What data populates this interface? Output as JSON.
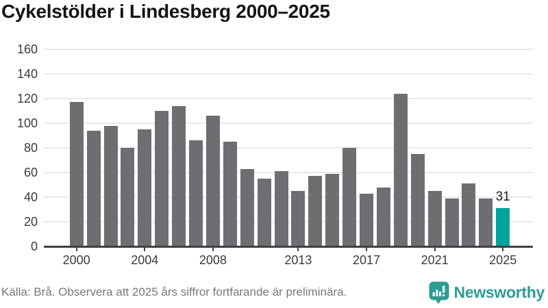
{
  "title": "Cykelstölder i Lindesberg 2000–2025",
  "chart_data": {
    "type": "bar",
    "title": "Cykelstölder i Lindesberg 2000–2025",
    "categories": [
      2000,
      2001,
      2002,
      2003,
      2004,
      2005,
      2006,
      2007,
      2008,
      2009,
      2010,
      2011,
      2012,
      2013,
      2014,
      2015,
      2016,
      2017,
      2018,
      2019,
      2020,
      2021,
      2022,
      2023,
      2024,
      2025
    ],
    "values": [
      117,
      94,
      98,
      80,
      95,
      110,
      114,
      86,
      106,
      85,
      63,
      55,
      61,
      45,
      57,
      59,
      80,
      43,
      48,
      124,
      75,
      45,
      39,
      51,
      39,
      31
    ],
    "ylim": [
      0,
      160
    ],
    "yticks": [
      0,
      20,
      40,
      60,
      80,
      100,
      120,
      140,
      160
    ],
    "xtick_labels": [
      "2000",
      "2004",
      "2008",
      "2013",
      "2017",
      "2021",
      "2025"
    ],
    "grid": "horizontal",
    "legend": "none",
    "bar_color": "#6e6e72",
    "highlight_color": "#00a39c",
    "highlight_index": 25,
    "highlight_label": "31"
  },
  "footer": {
    "source_text": "Källa: Brå. Observera att 2025 års siffror fortfarande är preliminära."
  },
  "logo": {
    "text": "Newsworthy",
    "color": "#2e9c94",
    "icon": "newsworthy-speech-bubble-chart-icon"
  }
}
